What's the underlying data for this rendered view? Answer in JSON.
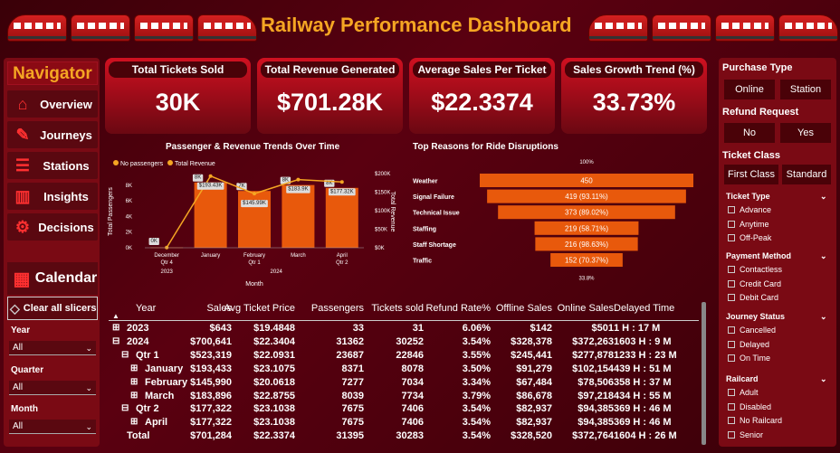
{
  "title": "Railway Performance Dashboard",
  "nav": {
    "title": "Navigator",
    "items": [
      {
        "label": "Overview",
        "icon": "home-icon"
      },
      {
        "label": "Journeys",
        "icon": "ticket-icon"
      },
      {
        "label": "Stations",
        "icon": "rail-icon"
      },
      {
        "label": "Insights",
        "icon": "bar-chart-icon"
      },
      {
        "label": "Decisions",
        "icon": "gear-icon"
      }
    ],
    "calendar": "Calendar",
    "clear": "Clear all slicers",
    "slicers": [
      {
        "label": "Year",
        "value": "All"
      },
      {
        "label": "Quarter",
        "value": "All"
      },
      {
        "label": "Month",
        "value": "All"
      }
    ]
  },
  "kpis": [
    {
      "label": "Total Tickets Sold",
      "value": "30K"
    },
    {
      "label": "Total Revenue Generated",
      "value": "$701.28K"
    },
    {
      "label": "Average Sales Per Ticket",
      "value": "$22.3374"
    },
    {
      "label": "Sales Growth Trend (%)",
      "value": "33.73%"
    }
  ],
  "right": {
    "purchase_type": {
      "label": "Purchase Type",
      "options": [
        "Online",
        "Station"
      ]
    },
    "refund_request": {
      "label": "Refund Request",
      "options": [
        "No",
        "Yes"
      ]
    },
    "ticket_class": {
      "label": "Ticket Class",
      "options": [
        "First Class",
        "Standard"
      ]
    },
    "ticket_type": {
      "label": "Ticket Type",
      "options": [
        "Advance",
        "Anytime",
        "Off-Peak"
      ]
    },
    "payment_method": {
      "label": "Payment Method",
      "options": [
        "Contactless",
        "Credit Card",
        "Debit Card"
      ]
    },
    "journey_status": {
      "label": "Journey Status",
      "options": [
        "Cancelled",
        "Delayed",
        "On Time"
      ]
    },
    "railcard": {
      "label": "Railcard",
      "options": [
        "Adult",
        "Disabled",
        "No Railcard",
        "Senior"
      ]
    }
  },
  "chart_data": [
    {
      "type": "bar",
      "title": "Passenger & Revenue Trends Over Time",
      "legend": [
        "No passengers",
        "Total Revenue"
      ],
      "ylabel": "Total Passengers",
      "y2label": "Total Revenue",
      "xlabel": "Month",
      "categories": [
        "December",
        "January",
        "February",
        "March",
        "April"
      ],
      "quarter_labels": [
        "Qtr 4",
        "",
        "Qtr 1",
        "",
        "Qtr 2"
      ],
      "year_labels": [
        "2023",
        "2024"
      ],
      "yticks": [
        "0K",
        "2K",
        "4K",
        "6K",
        "8K"
      ],
      "y2ticks": [
        "$0K",
        "$50K",
        "$100K",
        "$150K",
        "$200K"
      ],
      "series": [
        {
          "name": "No passengers",
          "values": [
            0.033,
            8.371,
            7.277,
            8.039,
            7.675
          ],
          "labels": [
            "0K",
            "8K",
            "7K",
            "8K",
            "8K"
          ]
        },
        {
          "name": "Total Revenue",
          "values": [
            0.643,
            193.433,
            145.99,
            183.896,
            177.322
          ],
          "labels": [
            "",
            "$193.43K",
            "$145.99K",
            "$183.9K",
            "$177.32K"
          ]
        }
      ],
      "ylim": [
        0,
        9.5
      ],
      "y2lim": [
        0,
        200
      ]
    },
    {
      "type": "bar",
      "title": "Top Reasons for Ride Disruptions",
      "top_label": "100%",
      "bottom_label": "33.8%",
      "categories": [
        "Weather",
        "Signal Failure",
        "Technical Issue",
        "Staffing",
        "Staff Shortage",
        "Traffic"
      ],
      "values": [
        450,
        419,
        373,
        219,
        216,
        152
      ],
      "labels": [
        "450",
        "419 (93.11%)",
        "373 (89.02%)",
        "219 (58.71%)",
        "216 (98.63%)",
        "152 (70.37%)"
      ]
    }
  ],
  "table": {
    "headers": [
      "Year",
      "Sales",
      "Avg Ticket Price",
      "Passengers",
      "Tickets sold",
      "Refund Rate%",
      "Offline Sales",
      "Online Sales",
      "Delayed Time"
    ],
    "rows": [
      {
        "indent": 0,
        "toggle": "⊞",
        "cells": [
          "2023",
          "$643",
          "$19.4848",
          "33",
          "31",
          "6.06%",
          "$142",
          "$501",
          "1 H : 17 M"
        ]
      },
      {
        "indent": 0,
        "toggle": "⊟",
        "cells": [
          "2024",
          "$700,641",
          "$22.3404",
          "31362",
          "30252",
          "3.54%",
          "$328,378",
          "$372,263",
          "1603 H : 9 M"
        ]
      },
      {
        "indent": 1,
        "toggle": "⊟",
        "cells": [
          "Qtr 1",
          "$523,319",
          "$22.0931",
          "23687",
          "22846",
          "3.55%",
          "$245,441",
          "$277,878",
          "1233 H : 23 M"
        ]
      },
      {
        "indent": 2,
        "toggle": "⊞",
        "cells": [
          "January",
          "$193,433",
          "$23.1075",
          "8371",
          "8078",
          "3.50%",
          "$91,279",
          "$102,154",
          "439 H : 51 M"
        ]
      },
      {
        "indent": 2,
        "toggle": "⊞",
        "cells": [
          "February",
          "$145,990",
          "$20.0618",
          "7277",
          "7034",
          "3.34%",
          "$67,484",
          "$78,506",
          "358 H : 37 M"
        ]
      },
      {
        "indent": 2,
        "toggle": "⊞",
        "cells": [
          "March",
          "$183,896",
          "$22.8755",
          "8039",
          "7734",
          "3.79%",
          "$86,678",
          "$97,218",
          "434 H : 55 M"
        ]
      },
      {
        "indent": 1,
        "toggle": "⊟",
        "cells": [
          "Qtr 2",
          "$177,322",
          "$23.1038",
          "7675",
          "7406",
          "3.54%",
          "$82,937",
          "$94,385",
          "369 H : 46 M"
        ]
      },
      {
        "indent": 2,
        "toggle": "⊞",
        "cells": [
          "April",
          "$177,322",
          "$23.1038",
          "7675",
          "7406",
          "3.54%",
          "$82,937",
          "$94,385",
          "369 H : 46 M"
        ]
      },
      {
        "indent": 0,
        "toggle": "",
        "cells": [
          "Total",
          "$701,284",
          "$22.3374",
          "31395",
          "30283",
          "3.54%",
          "$328,520",
          "$372,764",
          "1604 H : 26 M"
        ]
      }
    ]
  },
  "colors": {
    "accent": "#f5a623",
    "bar": "#e8590c",
    "bg": "#4a0208",
    "panel": "#7a0a14"
  }
}
